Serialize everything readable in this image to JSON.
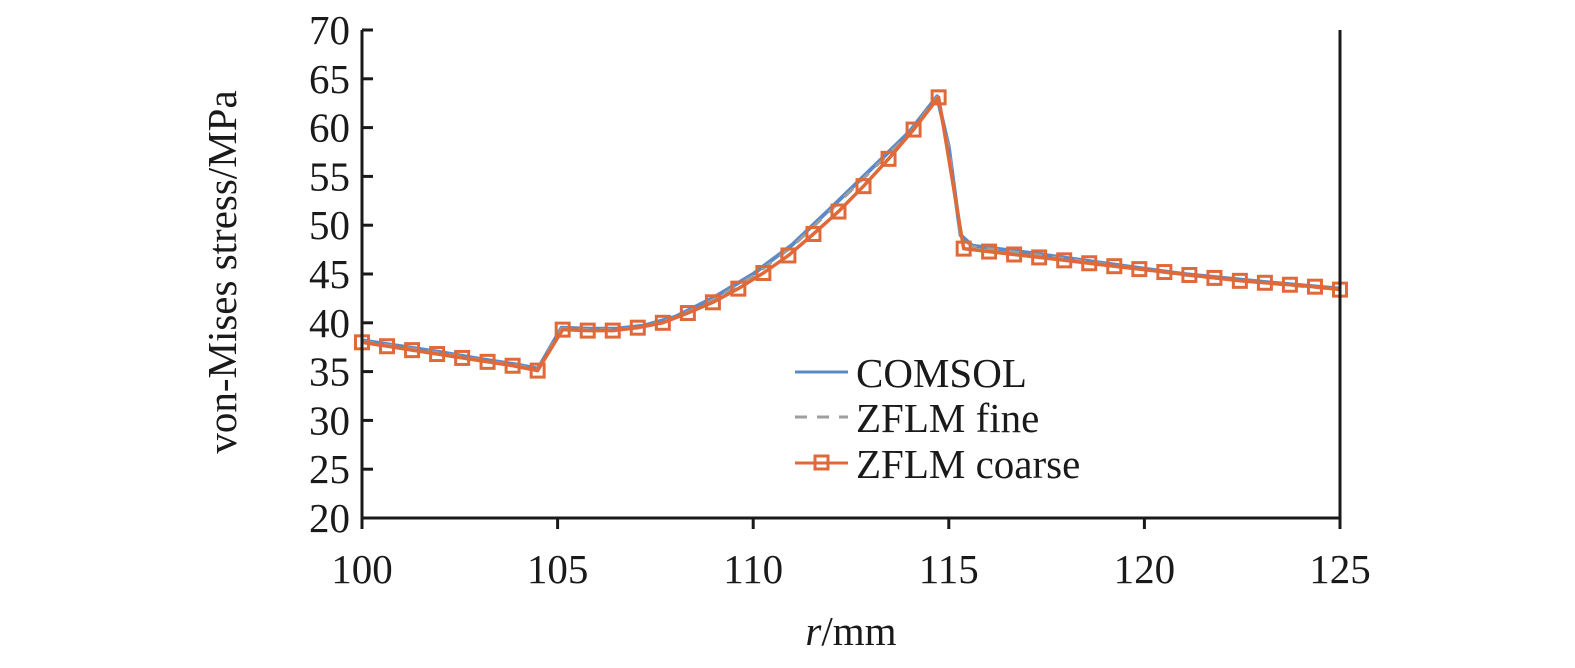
{
  "chart_data": {
    "type": "line",
    "title": "",
    "xlabel_italic": "r",
    "xlabel_rest": "/mm",
    "ylabel": "von-Mises stress/MPa",
    "xlim": [
      100,
      125
    ],
    "ylim": [
      20,
      70
    ],
    "xticks": [
      "100",
      "105",
      "110",
      "115",
      "120",
      "125"
    ],
    "yticks": [
      "20",
      "25",
      "30",
      "35",
      "40",
      "45",
      "50",
      "55",
      "60",
      "65",
      "70"
    ],
    "grid": false,
    "legend_position": "bottom-center",
    "series": [
      {
        "name": "COMSOL",
        "color": "#5b8ac6",
        "style": "solid",
        "x": [
          100,
          101,
          102,
          103,
          104,
          104.5,
          105.1,
          105.8,
          106.5,
          107.2,
          108,
          109,
          110,
          111,
          112,
          113,
          114,
          114.7,
          115.0,
          115.3,
          115.6,
          117,
          119,
          121,
          123,
          125
        ],
        "y": [
          38.2,
          37.6,
          37.0,
          36.3,
          35.7,
          35.3,
          39.5,
          39.4,
          39.4,
          39.7,
          40.6,
          42.6,
          45.0,
          48.0,
          51.8,
          55.7,
          59.6,
          63.2,
          58.0,
          49.0,
          47.9,
          47.2,
          46.1,
          45.0,
          44.2,
          43.5
        ]
      },
      {
        "name": "ZFLM fine",
        "color": "#9e9e9e",
        "style": "dashed",
        "x": [
          100,
          101,
          102,
          103,
          104,
          104.5,
          105.1,
          105.8,
          106.5,
          107.2,
          108,
          109,
          110,
          111,
          112,
          113,
          114,
          114.7,
          115.0,
          115.3,
          115.6,
          117,
          119,
          121,
          123,
          125
        ],
        "y": [
          38.1,
          37.5,
          36.9,
          36.2,
          35.6,
          35.2,
          39.4,
          39.3,
          39.3,
          39.6,
          40.5,
          42.4,
          44.8,
          47.8,
          51.6,
          55.5,
          59.4,
          63.1,
          57.8,
          48.8,
          47.8,
          47.1,
          46.0,
          44.9,
          44.1,
          43.4
        ]
      },
      {
        "name": "ZFLM coarse",
        "color": "#e0693a",
        "style": "solid-square-markers",
        "x": [
          100.0,
          100.64,
          101.28,
          101.92,
          102.56,
          103.21,
          103.85,
          104.49,
          105.13,
          105.77,
          106.41,
          107.05,
          107.69,
          108.33,
          108.97,
          109.62,
          110.26,
          110.9,
          111.54,
          112.18,
          112.82,
          113.46,
          114.1,
          114.74,
          115.38,
          116.03,
          116.67,
          117.31,
          117.95,
          118.59,
          119.23,
          119.87,
          120.51,
          121.15,
          121.79,
          122.44,
          123.08,
          123.72,
          124.36,
          125.0
        ],
        "y": [
          38.0,
          37.6,
          37.2,
          36.8,
          36.4,
          36.0,
          35.6,
          35.1,
          39.3,
          39.2,
          39.2,
          39.5,
          40.0,
          41.0,
          42.1,
          43.5,
          45.1,
          46.9,
          49.1,
          51.4,
          54.0,
          56.8,
          59.8,
          63.1,
          47.6,
          47.3,
          47.0,
          46.7,
          46.4,
          46.1,
          45.8,
          45.5,
          45.2,
          44.9,
          44.6,
          44.3,
          44.1,
          43.9,
          43.7,
          43.4
        ]
      }
    ]
  }
}
